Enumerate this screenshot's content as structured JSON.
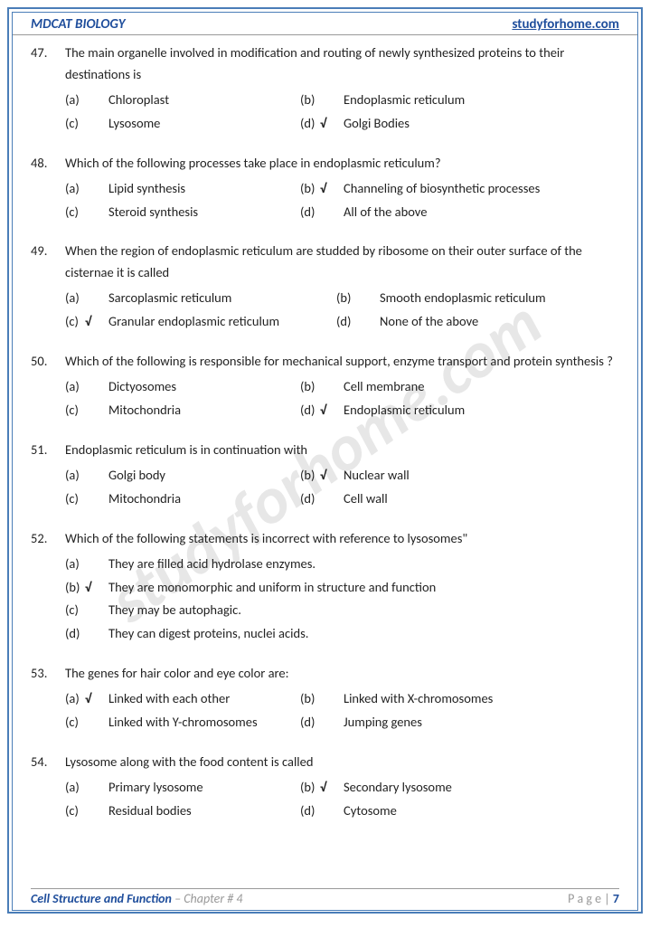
{
  "header": {
    "left": "MDCAT BIOLOGY",
    "right": "studyforhome.com"
  },
  "watermark": "studyforhome.com",
  "footer": {
    "topic": "Cell Structure and Function",
    "chapter": " – Chapter # 4",
    "pageLabel": "P a g e  | ",
    "pageNum": "7"
  },
  "questions": [
    {
      "num": "47.",
      "text": "The main organelle involved in modification and routing of newly synthesized proteins to their destinations is",
      "layout": "two-col",
      "opts": [
        {
          "k": "(a)",
          "c": "",
          "t": "Chloroplast"
        },
        {
          "k": "(b)",
          "c": "",
          "t": "Endoplasmic reticulum"
        },
        {
          "k": "(c)",
          "c": "",
          "t": "Lysosome"
        },
        {
          "k": "(d)",
          "c": "√",
          "t": "Golgi Bodies"
        }
      ]
    },
    {
      "num": "48.",
      "text": "Which of the following processes take place in endoplasmic reticulum?",
      "layout": "two-col",
      "opts": [
        {
          "k": "(a)",
          "c": "",
          "t": "Lipid synthesis"
        },
        {
          "k": "(b)",
          "c": "√",
          "t": "Channeling of biosynthetic processes"
        },
        {
          "k": "(c)",
          "c": "",
          "t": "Steroid synthesis"
        },
        {
          "k": "(d)",
          "c": "",
          "t": "All of the above"
        }
      ]
    },
    {
      "num": "49.",
      "text": "When the region of endoplasmic reticulum are studded by ribosome on their outer surface of the cisternae it is called",
      "layout": "two-col-wide",
      "opts": [
        {
          "k": "(a)",
          "c": "",
          "t": "Sarcoplasmic reticulum"
        },
        {
          "k": "(b)",
          "c": "",
          "t": "Smooth endoplasmic reticulum"
        },
        {
          "k": "(c)",
          "c": "√",
          "t": "Granular endoplasmic reticulum"
        },
        {
          "k": "(d)",
          "c": "",
          "t": "None of the above"
        }
      ]
    },
    {
      "num": "50.",
      "text": "Which of the following is responsible for mechanical support, enzyme transport and protein synthesis ?",
      "layout": "two-col",
      "opts": [
        {
          "k": "(a)",
          "c": "",
          "t": "Dictyosomes"
        },
        {
          "k": "(b)",
          "c": "",
          "t": "Cell membrane"
        },
        {
          "k": "(c)",
          "c": "",
          "t": "Mitochondria"
        },
        {
          "k": "(d)",
          "c": "√",
          "t": "Endoplasmic reticulum"
        }
      ]
    },
    {
      "num": "51.",
      "text": "Endoplasmic reticulum is in continuation with",
      "layout": "two-col",
      "opts": [
        {
          "k": "(a)",
          "c": "",
          "t": "Golgi body"
        },
        {
          "k": "(b)",
          "c": "√",
          "t": "Nuclear wall"
        },
        {
          "k": "(c)",
          "c": "",
          "t": "Mitochondria"
        },
        {
          "k": "(d)",
          "c": "",
          "t": "Cell wall"
        }
      ]
    },
    {
      "num": "52.",
      "text": "Which of the following statements is incorrect with reference to lysosomes\"",
      "layout": "one-col",
      "opts": [
        {
          "k": "(a)",
          "c": "",
          "t": "They are filled acid hydrolase enzymes."
        },
        {
          "k": "(b)",
          "c": "√",
          "t": "They are monomorphic and uniform in structure and function"
        },
        {
          "k": "(c)",
          "c": "",
          "t": "They may be autophagic."
        },
        {
          "k": "(d)",
          "c": "",
          "t": "They can digest proteins, nuclei acids."
        }
      ]
    },
    {
      "num": "53.",
      "text": "The genes for hair color and eye color are:",
      "layout": "two-col",
      "opts": [
        {
          "k": "(a)",
          "c": "√",
          "t": "Linked with each other"
        },
        {
          "k": "(b)",
          "c": "",
          "t": "Linked with X-chromosomes"
        },
        {
          "k": "(c)",
          "c": "",
          "t": "Linked with Y-chromosomes"
        },
        {
          "k": "(d)",
          "c": "",
          "t": "Jumping genes"
        }
      ]
    },
    {
      "num": "54.",
      "text": "Lysosome along with the food content is called",
      "layout": "two-col",
      "opts": [
        {
          "k": "(a)",
          "c": "",
          "t": "Primary lysosome"
        },
        {
          "k": "(b)",
          "c": "√",
          "t": "Secondary lysosome"
        },
        {
          "k": "(c)",
          "c": "",
          "t": "Residual bodies"
        },
        {
          "k": "(d)",
          "c": "",
          "t": "Cytosome"
        }
      ]
    }
  ]
}
